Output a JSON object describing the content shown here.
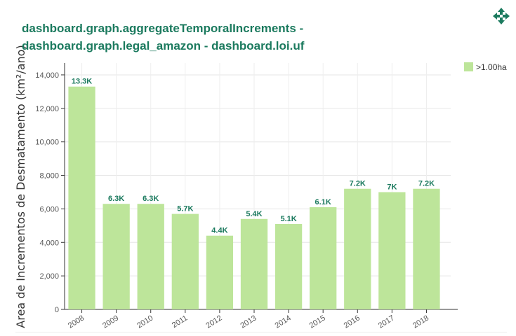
{
  "header": {
    "title": "dashboard.graph.aggregateTemporalIncrements - dashboard.graph.legal_amazon - dashboard.loi.uf",
    "move_icon": "move-arrows-icon"
  },
  "colors": {
    "bar": "#bde59a",
    "accent": "#1b7a5e"
  },
  "chart_data": {
    "type": "bar",
    "title": "dashboard.graph.aggregateTemporalIncrements - dashboard.graph.legal_amazon - dashboard.loi.uf",
    "xlabel": "",
    "ylabel": "Area de Incrementos de Desmatamento (km²/ano)",
    "ylim": [
      0,
      14500
    ],
    "yticks": [
      0,
      2000,
      4000,
      6000,
      8000,
      10000,
      12000,
      14000
    ],
    "ytick_labels": [
      "0",
      "2,000",
      "4,000",
      "6,000",
      "8,000",
      "10,000",
      "12,000",
      "14,000"
    ],
    "categories": [
      "2008",
      "2009",
      "2010",
      "2011",
      "2012",
      "2013",
      "2014",
      "2015",
      "2016",
      "2017",
      "2018"
    ],
    "series": [
      {
        "name": ">1.00ha",
        "values": [
          13300,
          6300,
          6300,
          5700,
          4400,
          5400,
          5100,
          6100,
          7200,
          7000,
          7200
        ],
        "labels": [
          "13.3K",
          "6.3K",
          "6.3K",
          "5.7K",
          "4.4K",
          "5.4K",
          "5.1K",
          "6.1K",
          "7.2K",
          "7K",
          "7.2K"
        ]
      }
    ],
    "grid": true,
    "legend_position": "top-right"
  }
}
